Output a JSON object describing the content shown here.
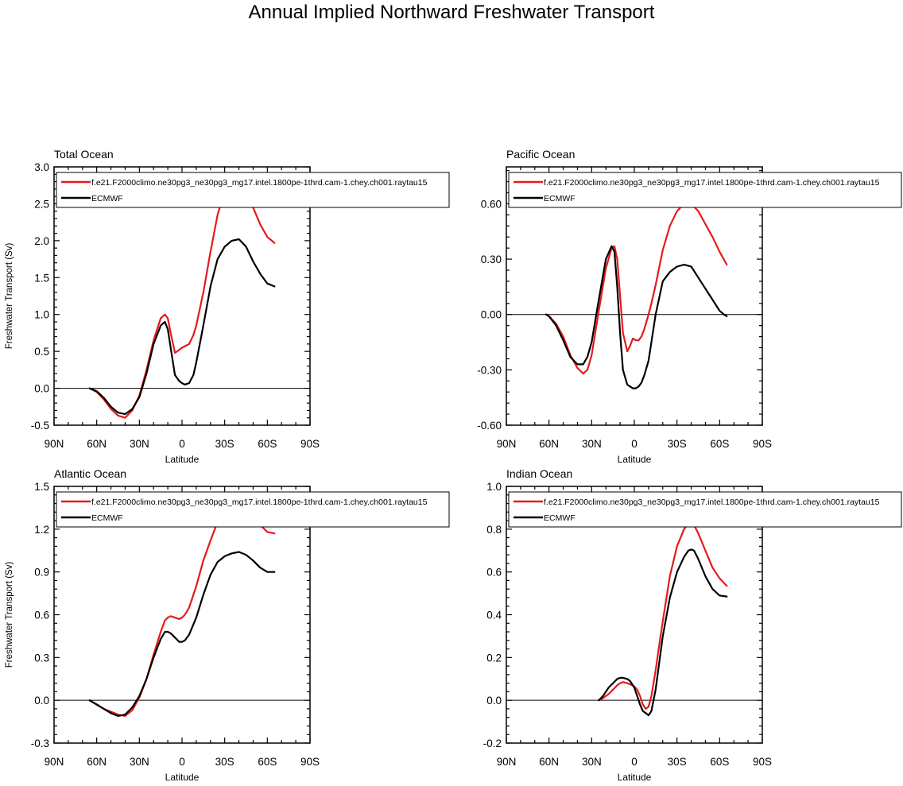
{
  "figure": {
    "title": "Annual Implied Northward Freshwater Transport"
  },
  "colors": {
    "model": "#e41a1c",
    "obs": "#000000"
  },
  "chart_data": [
    {
      "type": "line",
      "title": "Total Ocean",
      "xlabel": "Latitude",
      "ylabel": "Freshwater Transport (Sv)",
      "xlim": [
        90,
        -90
      ],
      "xticks": [
        90,
        60,
        30,
        0,
        -30,
        -60,
        -90
      ],
      "xticklabels": [
        "90N",
        "60N",
        "30N",
        "0",
        "30S",
        "60S",
        "90S"
      ],
      "ylim": [
        -0.5,
        3.0
      ],
      "yticks": [
        -0.5,
        0.0,
        0.5,
        1.0,
        1.5,
        2.0,
        2.5,
        3.0
      ],
      "yticklabels": [
        "-0.5",
        "0.0",
        "0.5",
        "1.0",
        "1.5",
        "2.0",
        "2.5",
        "3.0"
      ],
      "zero_line": true,
      "legend": "top",
      "series": [
        {
          "name": "f.e21.F2000climo.ne30pg3_ne30pg3_mg17.intel.1800pe-1thrd.cam-1.chey.ch001.raytau15",
          "x": [
            65,
            60,
            55,
            50,
            45,
            40,
            35,
            30,
            25,
            20,
            15,
            12,
            10,
            8,
            5,
            2,
            0,
            -2,
            -5,
            -8,
            -10,
            -15,
            -20,
            -25,
            -30,
            -35,
            -40,
            -45,
            -50,
            -55,
            -60,
            -65
          ],
          "y": [
            0.0,
            -0.05,
            -0.15,
            -0.28,
            -0.37,
            -0.4,
            -0.3,
            -0.1,
            0.25,
            0.65,
            0.95,
            1.0,
            0.95,
            0.75,
            0.48,
            0.52,
            0.55,
            0.57,
            0.6,
            0.72,
            0.85,
            1.3,
            1.85,
            2.35,
            2.68,
            2.82,
            2.82,
            2.68,
            2.45,
            2.22,
            2.05,
            1.97
          ]
        },
        {
          "name": "ECMWF",
          "x": [
            65,
            60,
            55,
            50,
            45,
            40,
            35,
            30,
            25,
            20,
            15,
            12,
            10,
            8,
            5,
            2,
            0,
            -2,
            -5,
            -8,
            -10,
            -15,
            -20,
            -25,
            -30,
            -35,
            -40,
            -45,
            -50,
            -55,
            -60,
            -65
          ],
          "y": [
            0.0,
            -0.04,
            -0.13,
            -0.25,
            -0.33,
            -0.35,
            -0.28,
            -0.12,
            0.2,
            0.6,
            0.85,
            0.9,
            0.8,
            0.55,
            0.18,
            0.1,
            0.07,
            0.05,
            0.07,
            0.18,
            0.35,
            0.85,
            1.38,
            1.75,
            1.92,
            2.0,
            2.02,
            1.92,
            1.72,
            1.55,
            1.42,
            1.38
          ]
        }
      ]
    },
    {
      "type": "line",
      "title": "Pacific Ocean",
      "xlabel": "Latitude",
      "ylabel": "",
      "xlim": [
        90,
        -90
      ],
      "xticks": [
        90,
        60,
        30,
        0,
        -30,
        -60,
        -90
      ],
      "xticklabels": [
        "90N",
        "60N",
        "30N",
        "0",
        "30S",
        "60S",
        "90S"
      ],
      "ylim": [
        -0.6,
        0.8
      ],
      "yticks": [
        -0.6,
        -0.3,
        0.0,
        0.3,
        0.6
      ],
      "yticklabels": [
        "-0.60",
        "-0.30",
        "0.00",
        "0.30",
        "0.60"
      ],
      "zero_line": true,
      "legend": "top",
      "series": [
        {
          "name": "f.e21.F2000climo.ne30pg3_ne30pg3_mg17.intel.1800pe-1thrd.cam-1.chey.ch001.raytau15",
          "x": [
            62,
            60,
            55,
            50,
            45,
            40,
            36,
            33,
            30,
            25,
            20,
            16,
            14,
            12,
            10,
            8,
            5,
            3,
            1,
            -1,
            -3,
            -5,
            -7,
            -10,
            -12,
            -15,
            -20,
            -25,
            -30,
            -35,
            -40,
            -45,
            -50,
            -55,
            -60,
            -65
          ],
          "y": [
            0.0,
            -0.01,
            -0.05,
            -0.12,
            -0.22,
            -0.29,
            -0.32,
            -0.3,
            -0.22,
            0.02,
            0.25,
            0.36,
            0.37,
            0.3,
            0.1,
            -0.1,
            -0.2,
            -0.17,
            -0.13,
            -0.14,
            -0.14,
            -0.12,
            -0.08,
            0.0,
            0.06,
            0.16,
            0.35,
            0.48,
            0.56,
            0.6,
            0.6,
            0.56,
            0.49,
            0.42,
            0.34,
            0.27
          ]
        },
        {
          "name": "ECMWF",
          "x": [
            62,
            60,
            55,
            50,
            45,
            40,
            36,
            33,
            30,
            25,
            20,
            16,
            14,
            12,
            10,
            8,
            5,
            3,
            1,
            -1,
            -3,
            -5,
            -7,
            -10,
            -12,
            -15,
            -20,
            -25,
            -30,
            -35,
            -40,
            -45,
            -50,
            -55,
            -60,
            -63,
            -65
          ],
          "y": [
            0.0,
            -0.01,
            -0.06,
            -0.14,
            -0.23,
            -0.27,
            -0.27,
            -0.23,
            -0.15,
            0.08,
            0.3,
            0.37,
            0.34,
            0.15,
            -0.1,
            -0.3,
            -0.38,
            -0.39,
            -0.4,
            -0.4,
            -0.39,
            -0.37,
            -0.33,
            -0.25,
            -0.15,
            0.0,
            0.18,
            0.23,
            0.26,
            0.27,
            0.26,
            0.2,
            0.14,
            0.08,
            0.02,
            0.0,
            -0.01
          ]
        }
      ]
    },
    {
      "type": "line",
      "title": "Atlantic Ocean",
      "xlabel": "Latitude",
      "ylabel": "Freshwater Transport (Sv)",
      "xlim": [
        90,
        -90
      ],
      "xticks": [
        90,
        60,
        30,
        0,
        -30,
        -60,
        -90
      ],
      "xticklabels": [
        "90N",
        "60N",
        "30N",
        "0",
        "30S",
        "60S",
        "90S"
      ],
      "ylim": [
        -0.3,
        1.5
      ],
      "yticks": [
        -0.3,
        0.0,
        0.3,
        0.6,
        0.9,
        1.2,
        1.5
      ],
      "yticklabels": [
        "-0.3",
        "0.0",
        "0.3",
        "0.6",
        "0.9",
        "1.2",
        "1.5"
      ],
      "zero_line": true,
      "legend": "top",
      "series": [
        {
          "name": "f.e21.F2000climo.ne30pg3_ne30pg3_mg17.intel.1800pe-1thrd.cam-1.chey.ch001.raytau15",
          "x": [
            65,
            60,
            55,
            50,
            45,
            40,
            35,
            30,
            25,
            20,
            15,
            12,
            10,
            8,
            5,
            2,
            0,
            -2,
            -5,
            -10,
            -15,
            -20,
            -25,
            -30,
            -35,
            -40,
            -45,
            -50,
            -55,
            -60,
            -65
          ],
          "y": [
            0.0,
            -0.03,
            -0.06,
            -0.08,
            -0.1,
            -0.11,
            -0.07,
            0.02,
            0.15,
            0.32,
            0.48,
            0.56,
            0.58,
            0.59,
            0.58,
            0.57,
            0.58,
            0.6,
            0.65,
            0.8,
            0.98,
            1.12,
            1.25,
            1.33,
            1.37,
            1.39,
            1.36,
            1.3,
            1.23,
            1.18,
            1.17
          ]
        },
        {
          "name": "ECMWF",
          "x": [
            65,
            60,
            55,
            50,
            45,
            40,
            35,
            30,
            25,
            20,
            15,
            12,
            10,
            8,
            5,
            2,
            0,
            -2,
            -5,
            -10,
            -15,
            -20,
            -25,
            -30,
            -35,
            -40,
            -45,
            -50,
            -55,
            -60,
            -65
          ],
          "y": [
            0.0,
            -0.03,
            -0.06,
            -0.09,
            -0.11,
            -0.1,
            -0.05,
            0.03,
            0.15,
            0.3,
            0.43,
            0.48,
            0.48,
            0.47,
            0.44,
            0.41,
            0.41,
            0.42,
            0.46,
            0.58,
            0.74,
            0.88,
            0.97,
            1.01,
            1.03,
            1.04,
            1.02,
            0.98,
            0.93,
            0.9,
            0.9
          ]
        }
      ]
    },
    {
      "type": "line",
      "title": "Indian Ocean",
      "xlabel": "Latitude",
      "ylabel": "",
      "xlim": [
        90,
        -90
      ],
      "xticks": [
        90,
        60,
        30,
        0,
        -30,
        -60,
        -90
      ],
      "xticklabels": [
        "90N",
        "60N",
        "30N",
        "0",
        "30S",
        "60S",
        "90S"
      ],
      "ylim": [
        -0.2,
        1.0
      ],
      "yticks": [
        -0.2,
        0.0,
        0.2,
        0.4,
        0.6,
        0.8,
        1.0
      ],
      "yticklabels": [
        "-0.2",
        "0.0",
        "0.2",
        "0.4",
        "0.6",
        "0.8",
        "1.0"
      ],
      "zero_line": true,
      "legend": "top",
      "series": [
        {
          "name": "f.e21.F2000climo.ne30pg3_ne30pg3_mg17.intel.1800pe-1thrd.cam-1.chey.ch001.raytau15",
          "x": [
            25,
            22,
            20,
            18,
            15,
            12,
            10,
            8,
            5,
            3,
            0,
            -2,
            -4,
            -6,
            -8,
            -10,
            -12,
            -15,
            -18,
            -20,
            -25,
            -30,
            -35,
            -38,
            -40,
            -42,
            -45,
            -50,
            -55,
            -60,
            -65
          ],
          "y": [
            0.0,
            0.01,
            0.02,
            0.03,
            0.05,
            0.07,
            0.08,
            0.085,
            0.08,
            0.075,
            0.065,
            0.05,
            0.02,
            -0.02,
            -0.04,
            -0.03,
            0.02,
            0.14,
            0.28,
            0.37,
            0.58,
            0.72,
            0.8,
            0.825,
            0.83,
            0.82,
            0.78,
            0.7,
            0.62,
            0.57,
            0.535
          ]
        },
        {
          "name": "ECMWF",
          "x": [
            25,
            22,
            20,
            18,
            15,
            12,
            10,
            8,
            5,
            3,
            0,
            -2,
            -4,
            -6,
            -8,
            -10,
            -12,
            -15,
            -18,
            -20,
            -25,
            -30,
            -35,
            -38,
            -40,
            -42,
            -45,
            -50,
            -55,
            -60,
            -65
          ],
          "y": [
            0.0,
            0.02,
            0.04,
            0.06,
            0.08,
            0.1,
            0.105,
            0.105,
            0.1,
            0.09,
            0.06,
            0.02,
            -0.02,
            -0.05,
            -0.06,
            -0.07,
            -0.05,
            0.05,
            0.2,
            0.3,
            0.48,
            0.6,
            0.67,
            0.7,
            0.705,
            0.7,
            0.66,
            0.58,
            0.52,
            0.49,
            0.485
          ]
        }
      ]
    }
  ]
}
